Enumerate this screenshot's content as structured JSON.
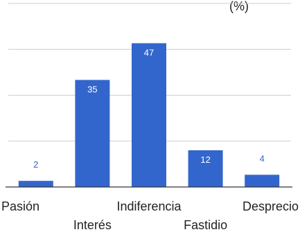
{
  "chart_data": {
    "type": "bar",
    "title_fragment": "(%)",
    "categories": [
      "Pasión",
      "Interés",
      "Indiferencia",
      "Fastidio",
      "Desprecio"
    ],
    "values": [
      2,
      35,
      47,
      12,
      4
    ],
    "data_labels": [
      "2",
      "35",
      "47",
      "12",
      "4"
    ],
    "ylim": [
      0,
      60
    ],
    "grid": true,
    "legend": "none",
    "xlabel": "",
    "ylabel": ""
  },
  "colors": {
    "bar": "#3366cc",
    "gridline": "#cccccc",
    "baseline": "#333333",
    "label_inside": "#ffffff",
    "label_outside": "#3366cc",
    "text": "#222222"
  }
}
